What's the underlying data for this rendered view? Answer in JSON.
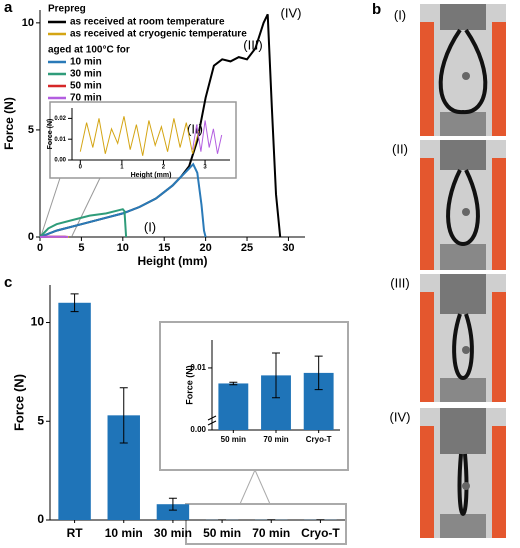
{
  "panel_labels": [
    "a",
    "b",
    "c"
  ],
  "photo_labels": [
    "(I)",
    "(II)",
    "(III)",
    "(IV)"
  ],
  "chart_data": [
    {
      "type": "line",
      "x_label": "Height (mm)",
      "y_label": "Force (N)",
      "legend_title": "Prepreg",
      "legend_subtitle": "aged at 100°C for",
      "annotations": [
        "(I)",
        "(II)",
        "(III)",
        "(IV)"
      ],
      "xlim": [
        0,
        32
      ],
      "ylim": [
        0,
        10.6
      ],
      "xticks": [
        0,
        5,
        10,
        15,
        20,
        25,
        30
      ],
      "yticks": [
        0,
        5,
        10
      ],
      "series": [
        {
          "name": "as received at room temperature",
          "color": "#000000",
          "x": [
            0,
            2,
            5,
            8,
            10,
            12,
            14,
            16,
            17,
            18,
            19,
            20,
            21,
            22,
            23,
            24,
            25,
            26,
            27,
            27.5,
            28,
            28.5,
            29
          ],
          "values": [
            0,
            0.3,
            0.6,
            0.9,
            1.1,
            1.4,
            1.8,
            2.4,
            2.8,
            3.3,
            4.5,
            6.5,
            8.0,
            8.3,
            8.2,
            8.4,
            8.3,
            8.8,
            10.0,
            10.4,
            6,
            2,
            0
          ]
        },
        {
          "name": "as received at cryogenic temperature",
          "color": "#d4a514",
          "x": [
            0,
            1,
            2,
            3,
            3.5
          ],
          "values": [
            0,
            0.01,
            0.01,
            0.01,
            0
          ]
        },
        {
          "name": "10 min",
          "color": "#2a7ab8",
          "x": [
            0,
            2,
            5,
            8,
            10,
            12,
            14,
            16,
            17,
            18,
            18.5,
            19,
            19.5,
            19.8,
            20
          ],
          "values": [
            0,
            0.3,
            0.6,
            0.9,
            1.1,
            1.4,
            1.8,
            2.4,
            2.8,
            3.2,
            3.4,
            3.0,
            1.5,
            0.3,
            0
          ]
        },
        {
          "name": "30 min",
          "color": "#2f9c7a",
          "x": [
            0,
            1,
            2,
            4,
            6,
            8,
            10,
            10.2,
            10.4
          ],
          "values": [
            0,
            0.4,
            0.6,
            0.8,
            1.0,
            1.1,
            1.3,
            1.2,
            0
          ]
        },
        {
          "name": "50 min",
          "color": "#d62728",
          "x": [
            0,
            1,
            2,
            3,
            3.2
          ],
          "values": [
            0,
            0.008,
            0.008,
            0.008,
            0
          ]
        },
        {
          "name": "70 min",
          "color": "#b35ee0",
          "x": [
            0,
            1,
            2,
            3,
            3.4
          ],
          "values": [
            0,
            0.009,
            0.009,
            0.009,
            0
          ]
        }
      ]
    },
    {
      "type": "line",
      "x_label": "Height (mm)",
      "y_label": "Force (N)",
      "xlim": [
        -0.2,
        3.6
      ],
      "ylim": [
        0,
        0.025
      ],
      "xticks": [
        0,
        1,
        2,
        3
      ],
      "yticks": [
        {
          "value": 0,
          "label": "0.00"
        },
        0.01,
        0.02
      ],
      "series": [
        {
          "color": "#d4a514",
          "x": [
            0,
            0.15,
            0.3,
            0.45,
            0.6,
            0.75,
            0.9,
            1.05,
            1.2,
            1.35,
            1.5,
            1.65,
            1.8,
            1.95,
            2.1,
            2.25,
            2.4,
            2.55,
            2.7,
            2.85
          ],
          "values": [
            0.004,
            0.018,
            0.006,
            0.02,
            0.003,
            0.015,
            0.008,
            0.021,
            0.005,
            0.017,
            0.002,
            0.019,
            0.007,
            0.016,
            0.004,
            0.02,
            0.006,
            0.018,
            0.003,
            0.014
          ]
        },
        {
          "color": "#b35ee0",
          "x": [
            2.7,
            2.8,
            2.9,
            3.0,
            3.1,
            3.2,
            3.3,
            3.4
          ],
          "values": [
            0.005,
            0.017,
            0.004,
            0.019,
            0.006,
            0.015,
            0.003,
            0.012
          ]
        }
      ]
    },
    {
      "type": "bar",
      "y_label": "Force (N)",
      "color": "#1f74b8",
      "categories": [
        "RT",
        "10 min",
        "30 min",
        "50 min",
        "70 min",
        "Cryo-T"
      ],
      "values": [
        11.0,
        5.3,
        0.8,
        0.0075,
        0.0088,
        0.0092
      ],
      "errors": [
        0.45,
        1.4,
        0.3,
        0.0002,
        0.0036,
        0.0027
      ],
      "ylim": [
        0,
        11.9
      ],
      "yticks": [
        0,
        5,
        10
      ]
    },
    {
      "type": "bar",
      "y_label": "Force (N)",
      "color": "#1f74b8",
      "categories": [
        "50 min",
        "70 min",
        "Cryo-T"
      ],
      "values": [
        0.0075,
        0.0088,
        0.0092
      ],
      "errors": [
        0.0002,
        0.0036,
        0.0027
      ],
      "ylim": [
        0,
        0.0145
      ],
      "yticks": [
        {
          "value": 0,
          "label": "0.00"
        },
        0.01
      ]
    }
  ]
}
